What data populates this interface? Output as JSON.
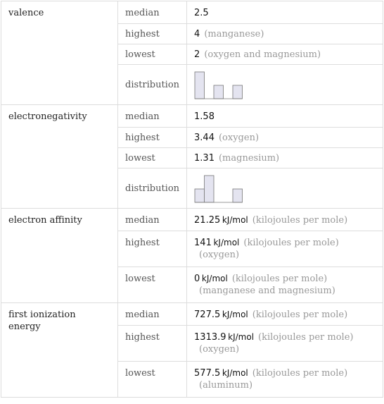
{
  "table": {
    "groups": [
      {
        "label": "valence",
        "rows": [
          {
            "key": "median",
            "value": "2.5"
          },
          {
            "key": "highest",
            "value": "4",
            "notes": [
              "(manganese)"
            ]
          },
          {
            "key": "lowest",
            "value": "2",
            "notes": [
              "(oxygen and magnesium)"
            ]
          },
          {
            "key": "distribution",
            "counts": [
              2,
              0,
              1,
              0,
              1
            ]
          }
        ]
      },
      {
        "label": "electronegativity",
        "rows": [
          {
            "key": "median",
            "value": "1.58"
          },
          {
            "key": "highest",
            "value": "3.44",
            "notes": [
              "(oxygen)"
            ]
          },
          {
            "key": "lowest",
            "value": "1.31",
            "notes": [
              "(magnesium)"
            ]
          },
          {
            "key": "distribution",
            "counts": [
              1,
              2,
              0,
              0,
              1
            ]
          }
        ]
      },
      {
        "label": "electron affinity",
        "rows": [
          {
            "key": "median",
            "value": "21.25",
            "unit": "kJ/mol",
            "notes": [
              "(kilojoules per mole)"
            ]
          },
          {
            "key": "highest",
            "value": "141",
            "unit": "kJ/mol",
            "notes": [
              "(kilojoules per mole)",
              "(oxygen)"
            ]
          },
          {
            "key": "lowest",
            "value": "0",
            "unit": "kJ/mol",
            "notes": [
              "(kilojoules per mole)",
              "(manganese and magnesium)"
            ]
          }
        ]
      },
      {
        "label": "first ionization energy",
        "rows": [
          {
            "key": "median",
            "value": "727.5",
            "unit": "kJ/mol",
            "notes": [
              "(kilojoules per mole)"
            ]
          },
          {
            "key": "highest",
            "value": "1313.9",
            "unit": "kJ/mol",
            "notes": [
              "(kilojoules per mole)",
              "(oxygen)"
            ]
          },
          {
            "key": "lowest",
            "value": "577.5",
            "unit": "kJ/mol",
            "notes": [
              "(kilojoules per mole)",
              "(aluminum)"
            ]
          }
        ]
      }
    ]
  }
}
